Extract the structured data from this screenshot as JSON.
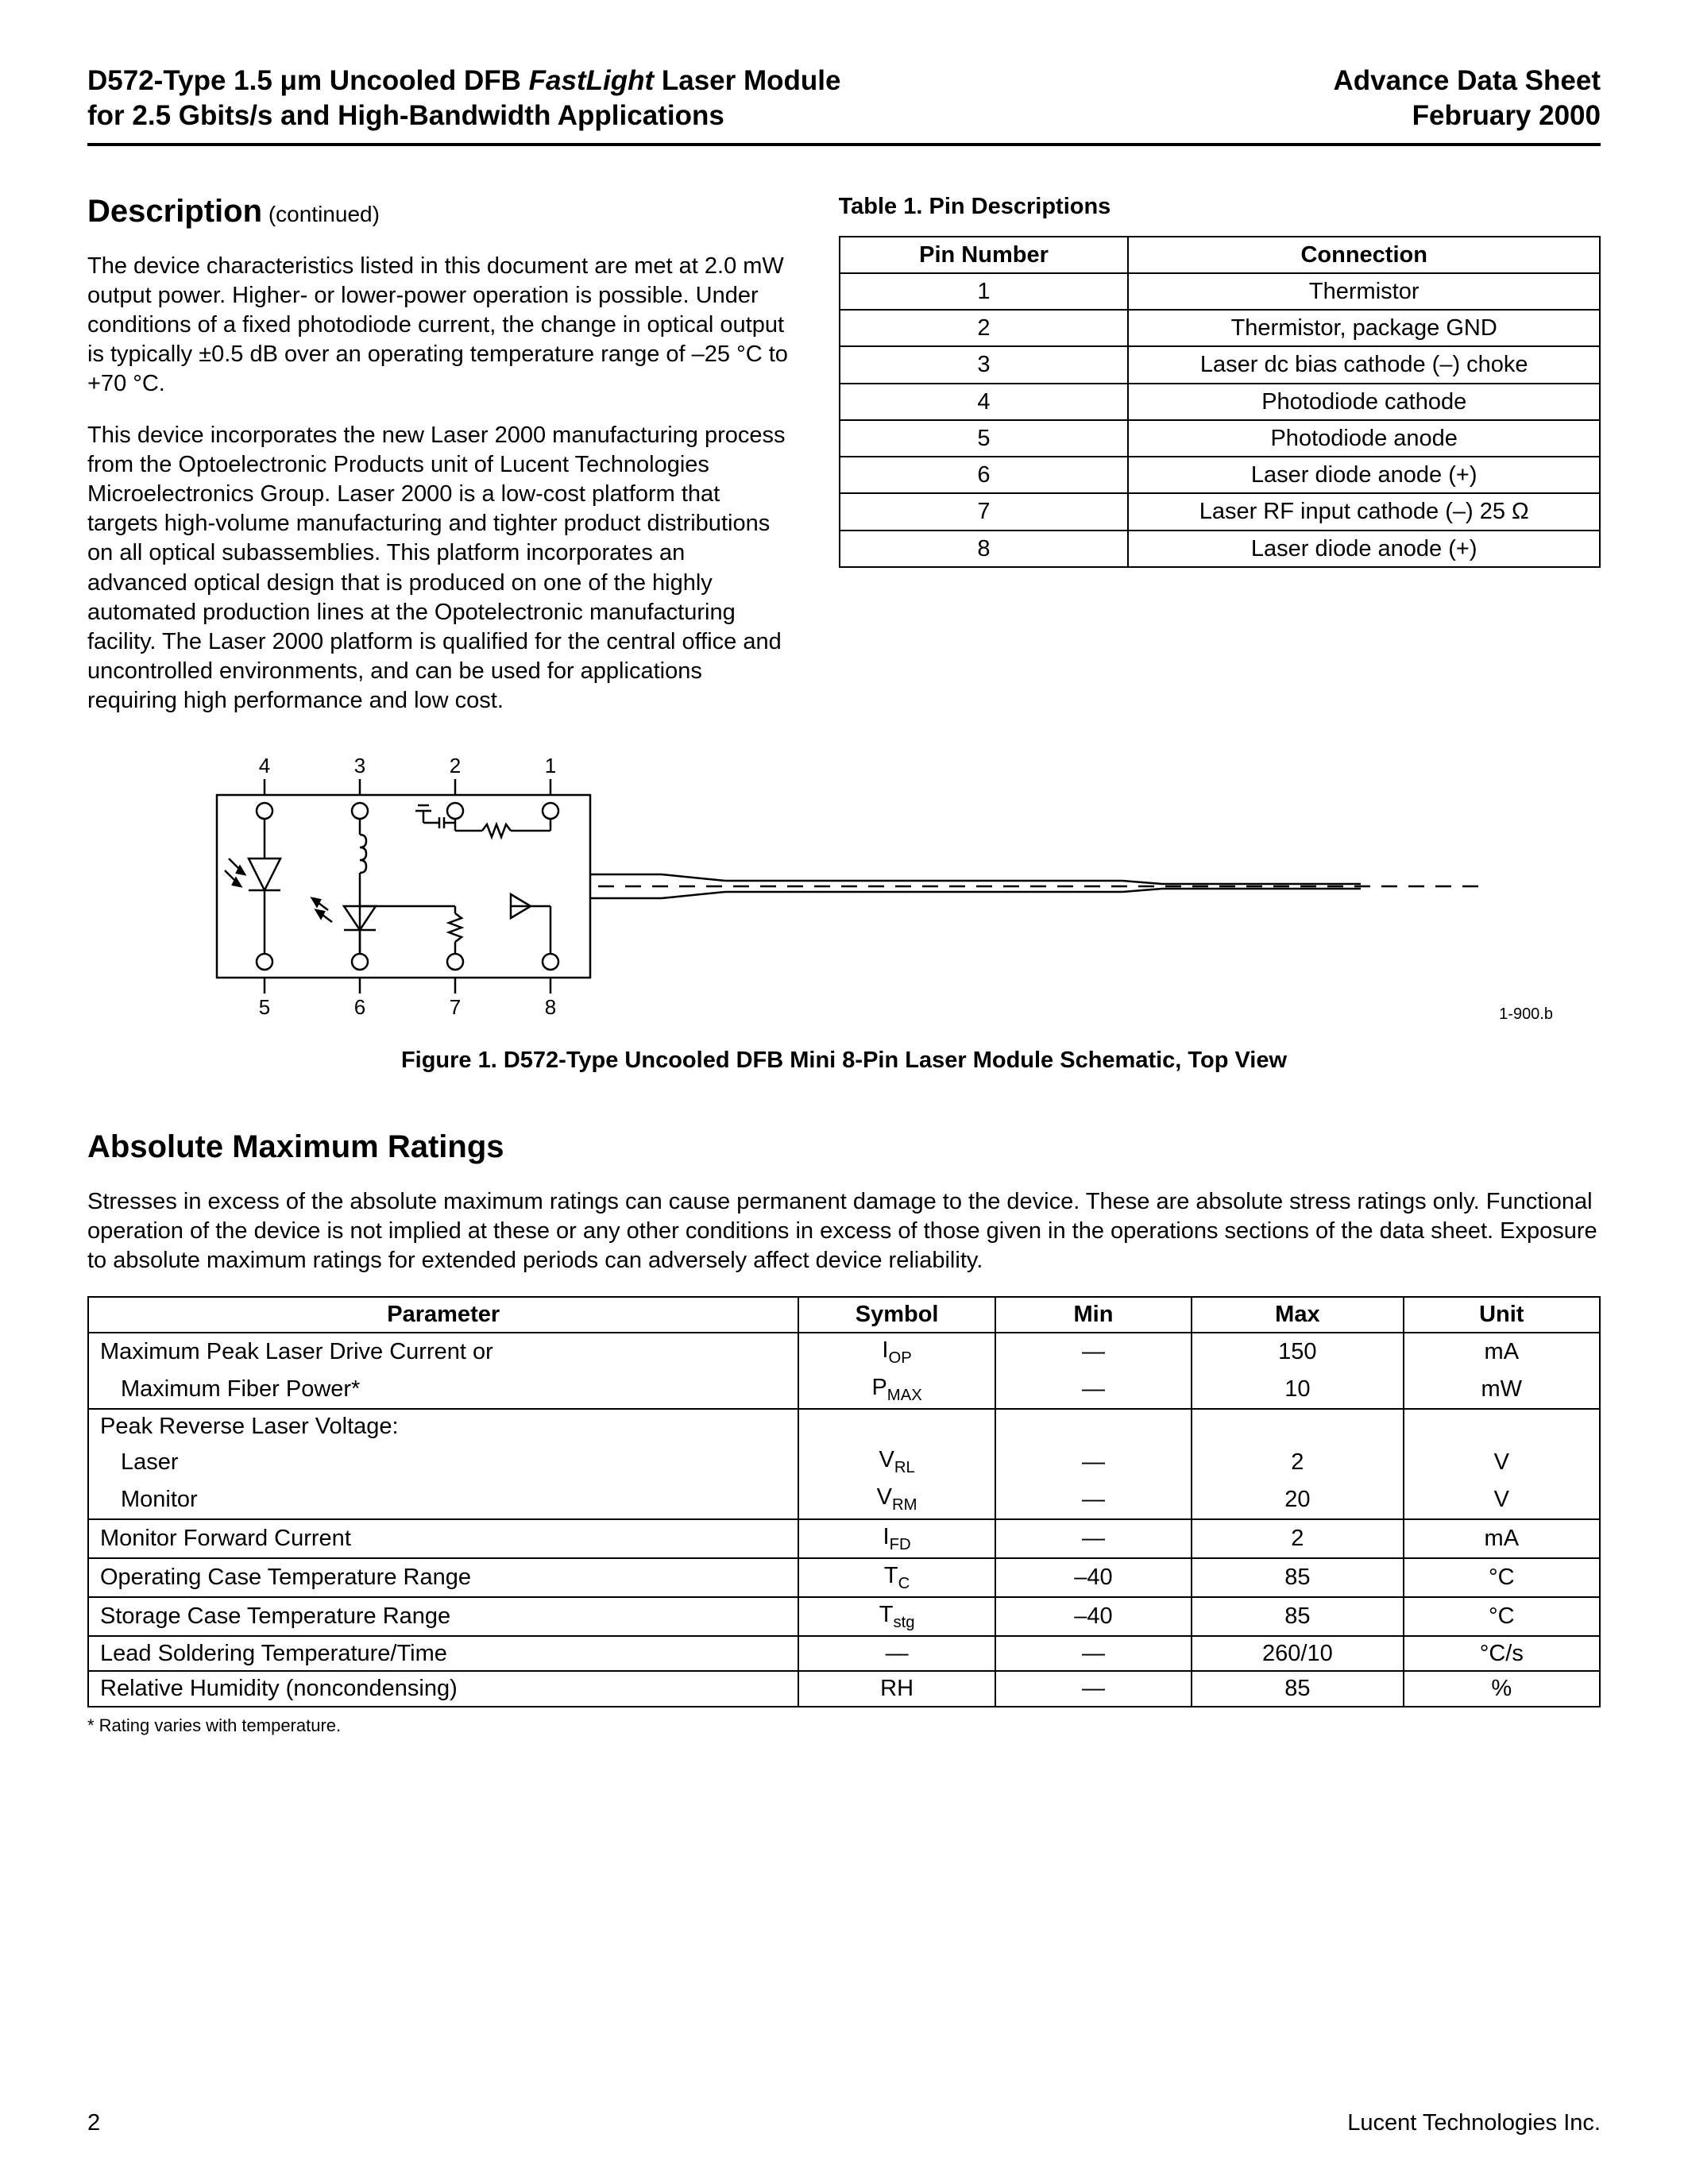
{
  "header": {
    "left_line1_a": "D572-Type 1.5 ",
    "left_line1_mu": "μ",
    "left_line1_b": "m Uncooled DFB ",
    "left_line1_italic": "FastLight",
    "left_line1_c": " Laser Module",
    "left_line2": "for 2.5 Gbits/s and High-Bandwidth Applications",
    "right_line1": "Advance Data Sheet",
    "right_line2": "February 2000"
  },
  "description": {
    "heading": "Description",
    "continued": " (continued)",
    "para1": "The device characteristics listed in this document are met at 2.0 mW output power. Higher- or lower-power operation is possible. Under conditions of a fixed photodiode current, the change in optical output is typically ±0.5 dB over an operating temperature range of –25 °C to +70 °C.",
    "para2": "This device incorporates the new Laser 2000 manufacturing process from the Optoelectronic Products unit of Lucent Technologies Microelectronics Group. Laser 2000 is a low-cost platform that targets high-volume manufacturing and tighter product distributions on all optical subassemblies. This platform incorporates an advanced optical design that is produced on one of the highly automated production lines at the Opotelectronic manufacturing facility. The Laser 2000 platform is qualified for the central office and uncontrolled environments, and can be used for applications requiring high performance and low cost."
  },
  "table1": {
    "caption": "Table 1. Pin Descriptions",
    "head_pin": "Pin Number",
    "head_conn": "Connection",
    "rows": [
      {
        "pin": "1",
        "conn": "Thermistor"
      },
      {
        "pin": "2",
        "conn": "Thermistor, package GND"
      },
      {
        "pin": "3",
        "conn": "Laser dc bias cathode (–) choke"
      },
      {
        "pin": "4",
        "conn": "Photodiode cathode"
      },
      {
        "pin": "5",
        "conn": "Photodiode anode"
      },
      {
        "pin": "6",
        "conn": "Laser diode anode (+)"
      },
      {
        "pin": "7",
        "conn": "Laser RF input cathode (–) 25 Ω"
      },
      {
        "pin": "8",
        "conn": "Laser diode anode (+)"
      }
    ]
  },
  "figure1": {
    "pin_labels": {
      "p1": "1",
      "p2": "2",
      "p3": "3",
      "p4": "4",
      "p5": "5",
      "p6": "6",
      "p7": "7",
      "p8": "8"
    },
    "ref": "1-900.b",
    "caption_a": "Figure 1. D572-Type Uncooled DFB Mini 8-Pin Laser Module Schematic, Top View",
    "mu": "μ",
    "svg": {
      "box_stroke": "#000000",
      "stroke_width": 2,
      "fill": "none",
      "bg": "#ffffff"
    }
  },
  "ratings": {
    "heading": "Absolute Maximum Ratings",
    "intro": "Stresses in excess of the absolute maximum ratings can cause permanent damage to the device. These are absolute stress ratings only. Functional operation of the device is not implied at these or any other conditions in excess of those given in the operations sections of the data sheet. Exposure to absolute maximum ratings for extended periods can adversely affect device reliability.",
    "head": {
      "param": "Parameter",
      "symbol": "Symbol",
      "min": "Min",
      "max": "Max",
      "unit": "Unit"
    },
    "rows": [
      {
        "param": "Maximum Peak Laser Drive Current or",
        "indent": false,
        "symbol": "I",
        "sub": "OP",
        "min": "—",
        "max": "150",
        "unit": "mA",
        "group": "top"
      },
      {
        "param": "Maximum Fiber Power*",
        "indent": true,
        "symbol": "P",
        "sub": "MAX",
        "min": "—",
        "max": "10",
        "unit": "mW",
        "group": "bottom"
      },
      {
        "param": "Peak Reverse Laser Voltage:",
        "indent": false,
        "symbol": "",
        "sub": "",
        "min": "",
        "max": "",
        "unit": "",
        "group": "top"
      },
      {
        "param": "Laser",
        "indent": true,
        "symbol": "V",
        "sub": "RL",
        "min": "—",
        "max": "2",
        "unit": "V",
        "group": "mid"
      },
      {
        "param": "Monitor",
        "indent": true,
        "symbol": "V",
        "sub": "RM",
        "min": "—",
        "max": "20",
        "unit": "V",
        "group": "bottom"
      },
      {
        "param": "Monitor Forward Current",
        "indent": false,
        "symbol": "I",
        "sub": "FD",
        "min": "—",
        "max": "2",
        "unit": "mA",
        "group": "single"
      },
      {
        "param": "Operating Case Temperature Range",
        "indent": false,
        "symbol": "T",
        "sub": "C",
        "min": "–40",
        "max": "85",
        "unit": "°C",
        "group": "single"
      },
      {
        "param": "Storage Case Temperature Range",
        "indent": false,
        "symbol": "T",
        "sub": "stg",
        "min": "–40",
        "max": "85",
        "unit": "°C",
        "group": "single"
      },
      {
        "param": "Lead Soldering Temperature/Time",
        "indent": false,
        "symbol": "—",
        "sub": "",
        "min": "—",
        "max": "260/10",
        "unit": "°C/s",
        "group": "single"
      },
      {
        "param": "Relative Humidity (noncondensing)",
        "indent": false,
        "symbol": "RH",
        "sub": "",
        "min": "—",
        "max": "85",
        "unit": "%",
        "group": "single"
      }
    ],
    "footnote": "* Rating varies with temperature."
  },
  "footer": {
    "page": "2",
    "company": "Lucent Technologies Inc."
  },
  "colors": {
    "text": "#000000",
    "bg": "#ffffff",
    "rule": "#000000"
  }
}
